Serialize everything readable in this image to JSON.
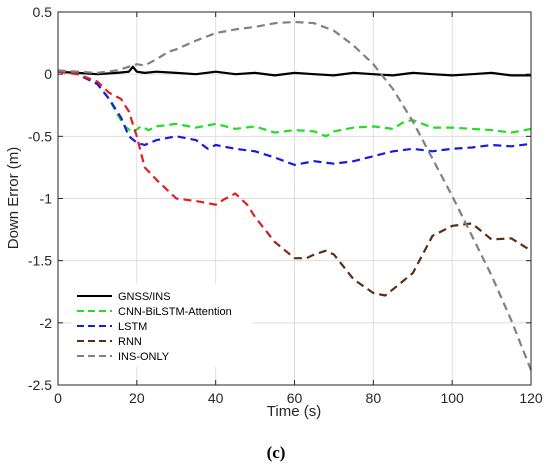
{
  "chart_data": {
    "type": "line",
    "title": "",
    "xlabel": "Time (s)",
    "ylabel": "Down Error (m)",
    "xlim": [
      0,
      120
    ],
    "ylim": [
      -2.5,
      0.5
    ],
    "xticks": [
      0,
      20,
      40,
      60,
      80,
      100,
      120
    ],
    "yticks": [
      0.5,
      0,
      -0.5,
      -1,
      -1.5,
      -2,
      -2.5
    ],
    "xtick_labels": [
      "0",
      "20",
      "40",
      "60",
      "80",
      "100",
      "120"
    ],
    "ytick_labels": [
      "0.5",
      "0",
      "-0.5",
      "-1",
      "-1.5",
      "-2",
      "-2.5"
    ],
    "grid": true,
    "legend_position": "lower-left",
    "panel_label": "(c)",
    "series": [
      {
        "name": "GNSS/INS",
        "color": "#000000",
        "style": "solid",
        "x": [
          0,
          5,
          10,
          15,
          18,
          19,
          20,
          22,
          25,
          30,
          35,
          40,
          45,
          50,
          55,
          60,
          65,
          70,
          75,
          80,
          85,
          90,
          95,
          100,
          105,
          110,
          115,
          120
        ],
        "y": [
          0.02,
          0.01,
          0.0,
          0.01,
          0.02,
          0.06,
          0.02,
          0.01,
          0.02,
          0.01,
          0.0,
          0.02,
          0.0,
          0.01,
          -0.01,
          0.01,
          0.0,
          -0.01,
          0.01,
          0.0,
          -0.01,
          0.01,
          0.0,
          -0.01,
          0.0,
          0.01,
          -0.01,
          -0.01
        ]
      },
      {
        "name": "CNN-BiLSTM-Attention",
        "color": "#22dd22",
        "style": "dashed",
        "x": [
          0,
          5,
          10,
          13,
          15,
          17,
          19,
          21,
          23,
          25,
          30,
          35,
          40,
          45,
          50,
          55,
          60,
          65,
          68,
          70,
          75,
          80,
          85,
          88,
          90,
          95,
          100,
          105,
          110,
          115,
          120
        ],
        "y": [
          0.02,
          0.0,
          -0.08,
          -0.2,
          -0.32,
          -0.42,
          -0.47,
          -0.42,
          -0.45,
          -0.42,
          -0.4,
          -0.43,
          -0.4,
          -0.44,
          -0.42,
          -0.47,
          -0.45,
          -0.46,
          -0.5,
          -0.46,
          -0.43,
          -0.42,
          -0.44,
          -0.38,
          -0.37,
          -0.43,
          -0.43,
          -0.44,
          -0.45,
          -0.47,
          -0.44
        ]
      },
      {
        "name": "LSTM",
        "color": "#1a1adf",
        "style": "dashed",
        "x": [
          0,
          5,
          10,
          13,
          16,
          18,
          20,
          22,
          25,
          30,
          35,
          38,
          40,
          45,
          50,
          55,
          60,
          65,
          70,
          75,
          80,
          85,
          90,
          95,
          100,
          105,
          110,
          115,
          120
        ],
        "y": [
          0.02,
          0.0,
          -0.08,
          -0.2,
          -0.35,
          -0.5,
          -0.55,
          -0.57,
          -0.53,
          -0.5,
          -0.53,
          -0.6,
          -0.57,
          -0.6,
          -0.62,
          -0.67,
          -0.73,
          -0.7,
          -0.72,
          -0.7,
          -0.66,
          -0.62,
          -0.6,
          -0.62,
          -0.6,
          -0.59,
          -0.57,
          -0.58,
          -0.56
        ]
      },
      {
        "name": "RNN",
        "color": "#e02020",
        "color_late": "#5a2e14",
        "style": "dashed",
        "x": [
          0,
          5,
          10,
          13,
          16,
          18,
          20,
          22,
          25,
          30,
          35,
          40,
          42,
          45,
          48,
          50,
          55,
          60,
          63,
          65,
          68,
          70,
          75,
          80,
          83,
          85,
          90,
          95,
          100,
          105,
          110,
          115,
          120
        ],
        "y": [
          0.02,
          0.0,
          -0.06,
          -0.15,
          -0.2,
          -0.3,
          -0.5,
          -0.75,
          -0.85,
          -1.0,
          -1.02,
          -1.05,
          -1.01,
          -0.96,
          -1.05,
          -1.15,
          -1.35,
          -1.48,
          -1.48,
          -1.45,
          -1.42,
          -1.45,
          -1.65,
          -1.76,
          -1.78,
          -1.73,
          -1.6,
          -1.3,
          -1.22,
          -1.2,
          -1.33,
          -1.32,
          -1.42
        ]
      },
      {
        "name": "INS-ONLY",
        "color": "#808080",
        "style": "dashed",
        "x": [
          0,
          5,
          10,
          15,
          18,
          20,
          22,
          25,
          28,
          30,
          35,
          40,
          45,
          50,
          55,
          60,
          65,
          70,
          75,
          80,
          85,
          90,
          95,
          100,
          105,
          110,
          115,
          120
        ],
        "y": [
          0.03,
          0.02,
          0.01,
          0.03,
          0.06,
          0.08,
          0.07,
          0.12,
          0.18,
          0.2,
          0.27,
          0.33,
          0.36,
          0.38,
          0.41,
          0.42,
          0.41,
          0.35,
          0.23,
          0.08,
          -0.12,
          -0.38,
          -0.68,
          -0.98,
          -1.3,
          -1.62,
          -1.98,
          -2.38
        ]
      }
    ]
  }
}
